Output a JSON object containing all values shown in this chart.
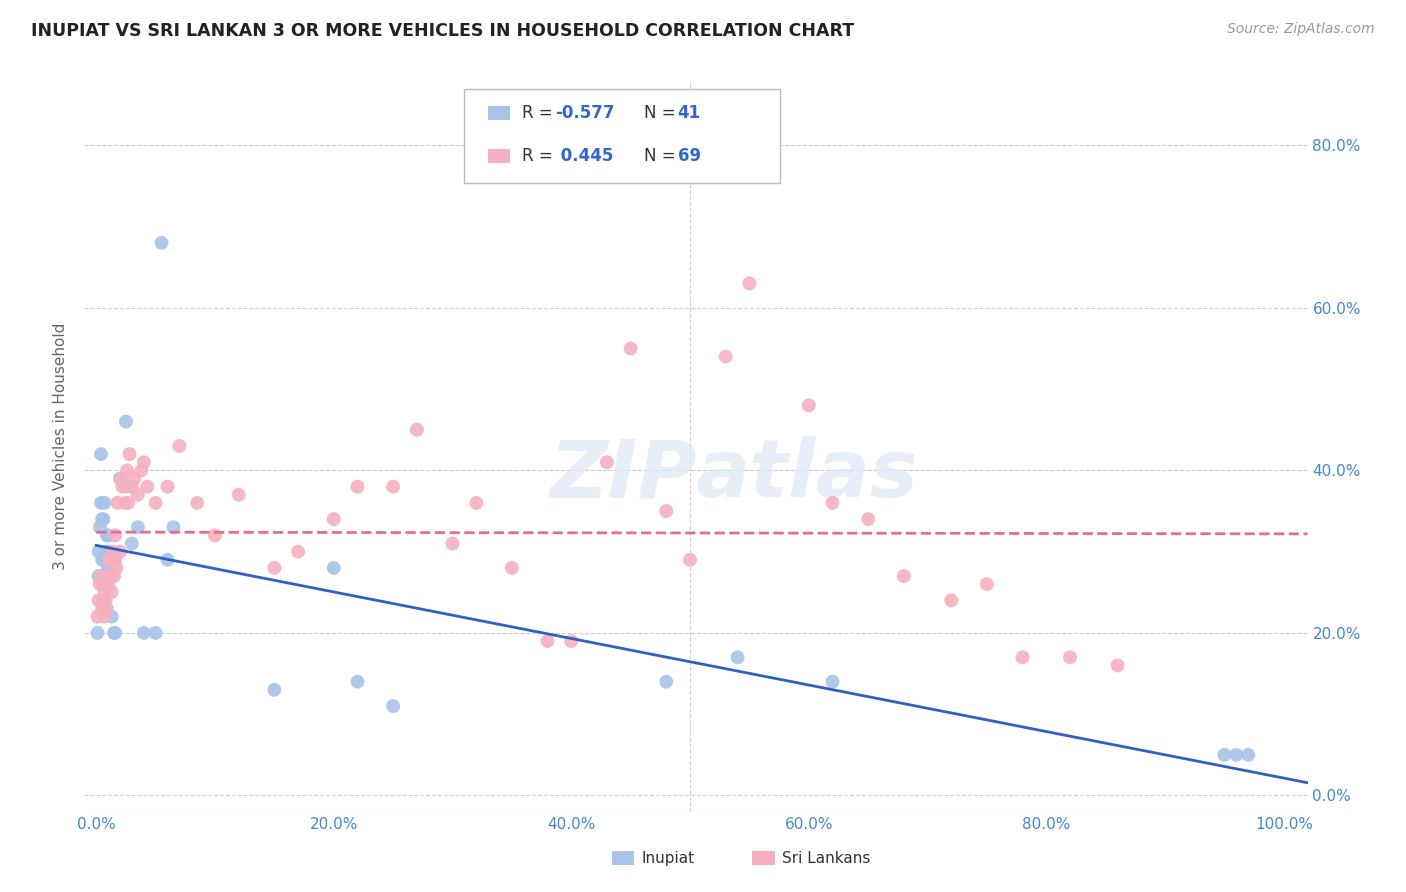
{
  "title": "INUPIAT VS SRI LANKAN 3 OR MORE VEHICLES IN HOUSEHOLD CORRELATION CHART",
  "source": "Source: ZipAtlas.com",
  "ylabel": "3 or more Vehicles in Household",
  "xlim": [
    -0.01,
    1.02
  ],
  "ylim": [
    -0.02,
    0.88
  ],
  "x_ticks": [
    0.0,
    0.2,
    0.4,
    0.6,
    0.8,
    1.0
  ],
  "x_tick_labels": [
    "0.0%",
    "20.0%",
    "40.0%",
    "60.0%",
    "80.0%",
    "100.0%"
  ],
  "y_ticks": [
    0.0,
    0.2,
    0.4,
    0.6,
    0.8
  ],
  "y_tick_labels_right": [
    "0.0%",
    "20.0%",
    "40.0%",
    "60.0%",
    "80.0%"
  ],
  "inupiat_R": -0.577,
  "inupiat_N": 41,
  "srilankan_R": 0.445,
  "srilankan_N": 69,
  "inupiat_color": "#a8c4e8",
  "srilankan_color": "#f5b0c0",
  "inupiat_line_color": "#3060c0",
  "srilankan_line_color": "#e07090",
  "background_color": "#ffffff",
  "inupiat_x": [
    0.001,
    0.002,
    0.002,
    0.003,
    0.004,
    0.004,
    0.005,
    0.005,
    0.006,
    0.006,
    0.007,
    0.007,
    0.008,
    0.009,
    0.01,
    0.01,
    0.01,
    0.011,
    0.012,
    0.013,
    0.015,
    0.016,
    0.02,
    0.025,
    0.03,
    0.035,
    0.04,
    0.05,
    0.055,
    0.06,
    0.065,
    0.15,
    0.2,
    0.22,
    0.25,
    0.48,
    0.54,
    0.62,
    0.95,
    0.96,
    0.97
  ],
  "inupiat_y": [
    0.2,
    0.27,
    0.3,
    0.33,
    0.36,
    0.42,
    0.29,
    0.34,
    0.29,
    0.34,
    0.29,
    0.36,
    0.3,
    0.32,
    0.28,
    0.3,
    0.32,
    0.28,
    0.27,
    0.22,
    0.2,
    0.2,
    0.39,
    0.46,
    0.31,
    0.33,
    0.2,
    0.2,
    0.68,
    0.29,
    0.33,
    0.13,
    0.28,
    0.14,
    0.11,
    0.14,
    0.17,
    0.14,
    0.05,
    0.05,
    0.05
  ],
  "srilankan_x": [
    0.001,
    0.002,
    0.003,
    0.004,
    0.005,
    0.005,
    0.006,
    0.007,
    0.007,
    0.008,
    0.009,
    0.01,
    0.011,
    0.011,
    0.012,
    0.013,
    0.014,
    0.015,
    0.015,
    0.016,
    0.016,
    0.017,
    0.018,
    0.02,
    0.021,
    0.022,
    0.024,
    0.025,
    0.026,
    0.027,
    0.028,
    0.03,
    0.032,
    0.035,
    0.038,
    0.04,
    0.043,
    0.05,
    0.06,
    0.07,
    0.085,
    0.1,
    0.12,
    0.15,
    0.17,
    0.2,
    0.22,
    0.25,
    0.27,
    0.3,
    0.32,
    0.35,
    0.38,
    0.4,
    0.43,
    0.45,
    0.48,
    0.5,
    0.53,
    0.55,
    0.6,
    0.62,
    0.65,
    0.68,
    0.72,
    0.75,
    0.78,
    0.82,
    0.86
  ],
  "srilankan_y": [
    0.22,
    0.24,
    0.26,
    0.27,
    0.23,
    0.26,
    0.24,
    0.22,
    0.25,
    0.24,
    0.23,
    0.26,
    0.27,
    0.29,
    0.27,
    0.25,
    0.3,
    0.27,
    0.29,
    0.29,
    0.32,
    0.28,
    0.36,
    0.3,
    0.39,
    0.38,
    0.36,
    0.38,
    0.4,
    0.36,
    0.42,
    0.38,
    0.39,
    0.37,
    0.4,
    0.41,
    0.38,
    0.36,
    0.38,
    0.43,
    0.36,
    0.32,
    0.37,
    0.28,
    0.3,
    0.34,
    0.38,
    0.38,
    0.45,
    0.31,
    0.36,
    0.28,
    0.19,
    0.19,
    0.41,
    0.55,
    0.35,
    0.29,
    0.54,
    0.63,
    0.48,
    0.36,
    0.34,
    0.27,
    0.24,
    0.26,
    0.17,
    0.17,
    0.16
  ]
}
